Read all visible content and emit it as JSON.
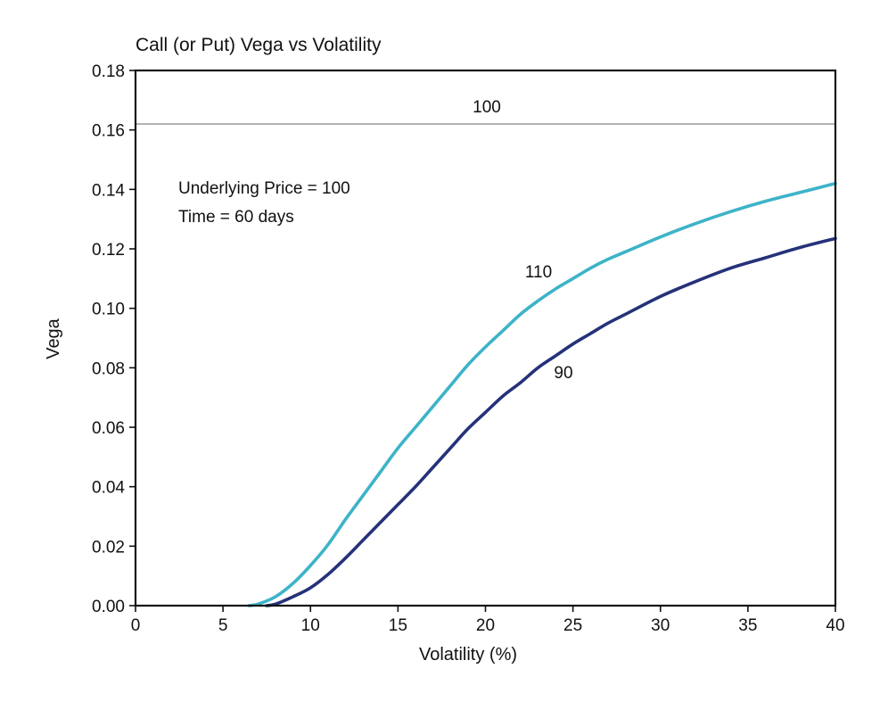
{
  "chart_data": {
    "type": "line",
    "title": "Call (or Put) Vega vs Volatility",
    "xlabel": "Volatility (%)",
    "ylabel": "Vega",
    "xlim": [
      0,
      40
    ],
    "ylim": [
      0,
      0.18
    ],
    "xticks": [
      0,
      5,
      10,
      15,
      20,
      25,
      30,
      35,
      40
    ],
    "yticks": [
      0.0,
      0.02,
      0.04,
      0.06,
      0.08,
      0.1,
      0.12,
      0.14,
      0.16,
      0.18
    ],
    "ytick_labels": [
      "0.00",
      "0.02",
      "0.04",
      "0.06",
      "0.08",
      "0.10",
      "0.12",
      "0.14",
      "0.16",
      "0.18"
    ],
    "xtick_labels": [
      "0",
      "5",
      "10",
      "15",
      "20",
      "25",
      "30",
      "35",
      "40"
    ],
    "grid": false,
    "annotations": [
      "Underlying Price = 100",
      "Time = 60 days"
    ],
    "series": [
      {
        "name": "100",
        "color": "#9a9a9a",
        "x": [
          0,
          40
        ],
        "y": [
          0.162,
          0.162
        ]
      },
      {
        "name": "110",
        "color": "#3db3c8",
        "x": [
          6.5,
          7,
          8,
          9,
          10,
          11,
          12,
          13,
          14,
          15,
          16,
          17,
          18,
          19,
          20,
          21,
          22,
          23,
          24,
          25,
          26,
          27,
          28,
          30,
          32,
          34,
          36,
          38,
          40
        ],
        "y": [
          0.0,
          0.0005,
          0.003,
          0.0075,
          0.0135,
          0.0205,
          0.029,
          0.037,
          0.045,
          0.053,
          0.06,
          0.067,
          0.074,
          0.081,
          0.087,
          0.0925,
          0.098,
          0.1025,
          0.1065,
          0.11,
          0.1135,
          0.1165,
          0.119,
          0.124,
          0.1285,
          0.1325,
          0.136,
          0.139,
          0.142
        ]
      },
      {
        "name": "90",
        "color": "#25327a",
        "x": [
          7.5,
          8,
          9,
          10,
          11,
          12,
          13,
          14,
          15,
          16,
          17,
          18,
          19,
          20,
          21,
          22,
          23,
          24,
          25,
          26,
          27,
          28,
          30,
          32,
          34,
          36,
          38,
          40
        ],
        "y": [
          0.0,
          0.0005,
          0.003,
          0.006,
          0.0105,
          0.016,
          0.022,
          0.028,
          0.034,
          0.04,
          0.0465,
          0.053,
          0.0595,
          0.065,
          0.0705,
          0.075,
          0.08,
          0.084,
          0.088,
          0.0915,
          0.095,
          0.098,
          0.104,
          0.109,
          0.1135,
          0.117,
          0.1205,
          0.1235
        ]
      }
    ]
  }
}
